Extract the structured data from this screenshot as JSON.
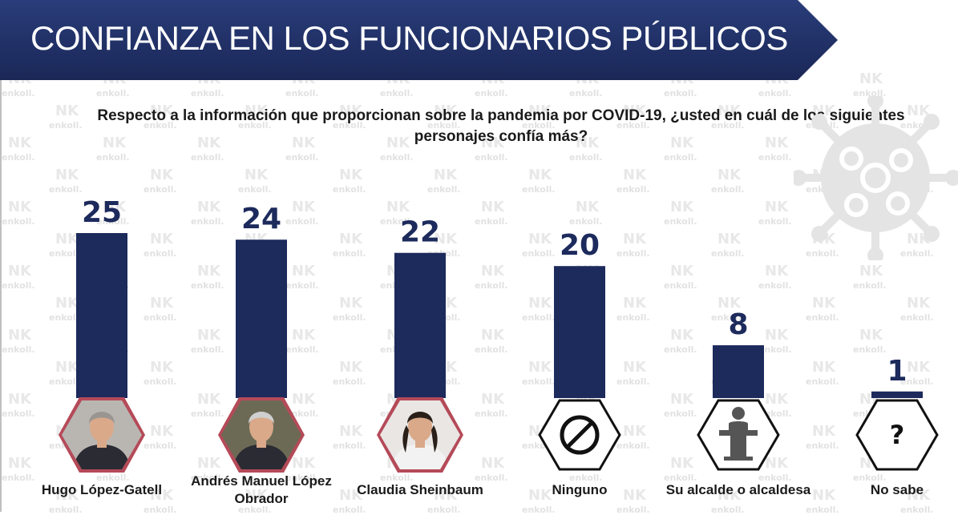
{
  "header": {
    "title": "CONFIANZA EN LOS FUNCIONARIOS PÚBLICOS"
  },
  "watermark": {
    "text": "enkoll."
  },
  "colors": {
    "bar": "#1c2a5c",
    "header": "#1f2f66",
    "hex_photo_border": "#b54a58",
    "value": "#1c2a5c"
  },
  "chart_data": {
    "type": "bar",
    "title": "Respecto a la información que proporcionan sobre la pandemia por COVID-19, ¿usted en cuál de los siguientes personajes confía más?",
    "categories": [
      "Hugo López-Gatell",
      "Andrés Manuel López Obrador",
      "Claudia Sheinbaum",
      "Ninguno",
      "Su alcalde o alcaldesa",
      "No sabe"
    ],
    "values": [
      25,
      24,
      22,
      20,
      8,
      1
    ],
    "icons": [
      "portrait-photo",
      "portrait-photo",
      "portrait-photo",
      "prohibited-sign-icon",
      "speaker-podium-icon",
      "question-mark-icon"
    ],
    "ylim": [
      0,
      25
    ],
    "grid": false,
    "legend": "none"
  }
}
